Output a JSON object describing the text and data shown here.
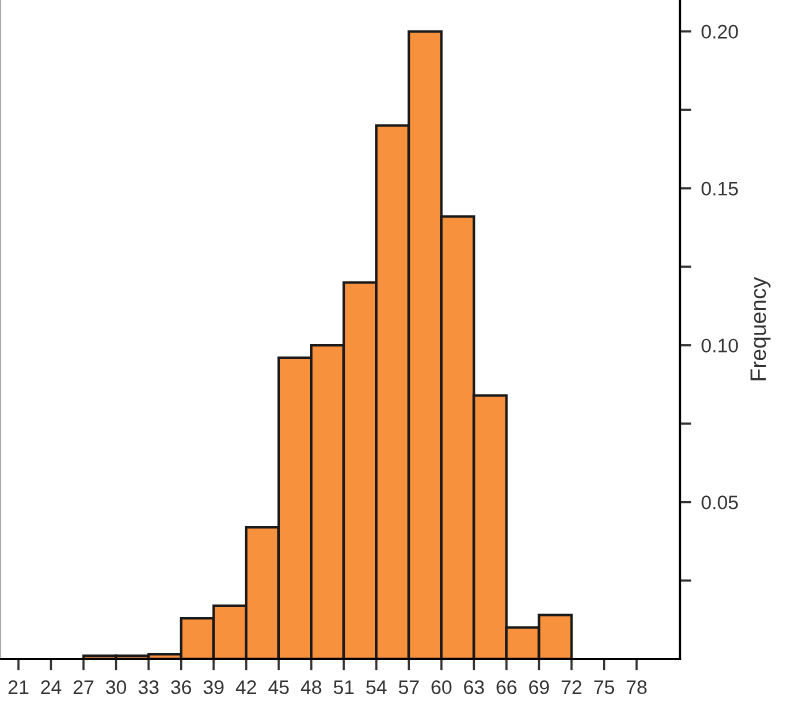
{
  "chart_data": {
    "type": "histogram",
    "ylabel": "Frequency",
    "bins": [
      27,
      30,
      33,
      36,
      39,
      42,
      45,
      48,
      51,
      54,
      57,
      60,
      63,
      66,
      69,
      72
    ],
    "values": [
      0.001,
      0.001,
      0.0015,
      0.013,
      0.017,
      0.042,
      0.096,
      0.1,
      0.12,
      0.17,
      0.2,
      0.141,
      0.084,
      0.01,
      0.014
    ],
    "color": "#f7913d",
    "xlim": [
      19.3,
      82
    ],
    "xticks": [
      21,
      24,
      27,
      30,
      33,
      36,
      39,
      42,
      45,
      48,
      51,
      54,
      57,
      60,
      63,
      66,
      69,
      72,
      75,
      78
    ],
    "ylim": [
      0,
      0.21
    ],
    "yticks": [
      {
        "value": 0.025,
        "label": null
      },
      {
        "value": 0.05,
        "label": "0.05"
      },
      {
        "value": 0.075,
        "label": null
      },
      {
        "value": 0.1,
        "label": "0.10"
      },
      {
        "value": 0.125,
        "label": null
      },
      {
        "value": 0.15,
        "label": "0.15"
      },
      {
        "value": 0.175,
        "label": null
      },
      {
        "value": 0.2,
        "label": "0.20"
      }
    ],
    "grid": false
  }
}
